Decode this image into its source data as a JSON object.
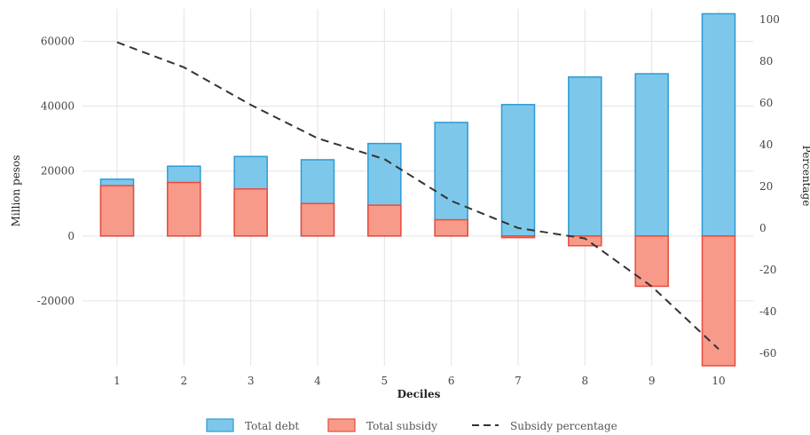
{
  "chart_data": {
    "type": "bar",
    "title": "",
    "xlabel": "Deciles",
    "ylabel": "Million pesos",
    "y2label": "Percentage",
    "categories": [
      "1",
      "2",
      "3",
      "4",
      "5",
      "6",
      "7",
      "8",
      "9",
      "10"
    ],
    "ylim": [
      -40000,
      70000
    ],
    "yticks": [
      -20000,
      0,
      20000,
      40000,
      60000
    ],
    "ytick_labels": [
      "-20000",
      "0",
      "20000",
      "40000",
      "60000"
    ],
    "y2lim": [
      -66,
      105
    ],
    "y2ticks": [
      -60,
      -40,
      -20,
      0,
      20,
      40,
      60,
      80,
      100
    ],
    "y2tick_labels": [
      "-60",
      "-40",
      "-20",
      "0",
      "20",
      "40",
      "60",
      "80",
      "100"
    ],
    "grid": true,
    "legend_position": "bottom",
    "series": [
      {
        "name": "Total debt",
        "type": "bar",
        "axis": "left",
        "color": "#7dc8ea",
        "edge": "#2e9bd6",
        "values": [
          17500,
          21500,
          24500,
          23500,
          28500,
          35000,
          40500,
          49000,
          50000,
          68500
        ]
      },
      {
        "name": "Total subsidy",
        "type": "bar",
        "axis": "left",
        "color": "#f89a8a",
        "edge": "#ea4b3c",
        "values": [
          15500,
          16500,
          14500,
          10000,
          9500,
          5000,
          -500,
          -3000,
          -15500,
          -40000
        ]
      },
      {
        "name": "Subsidy percentage",
        "type": "line",
        "axis": "right",
        "color": "#333333",
        "dash": true,
        "values": [
          89,
          77,
          59,
          43,
          33,
          13,
          0,
          -5,
          -28,
          -58
        ]
      }
    ]
  }
}
